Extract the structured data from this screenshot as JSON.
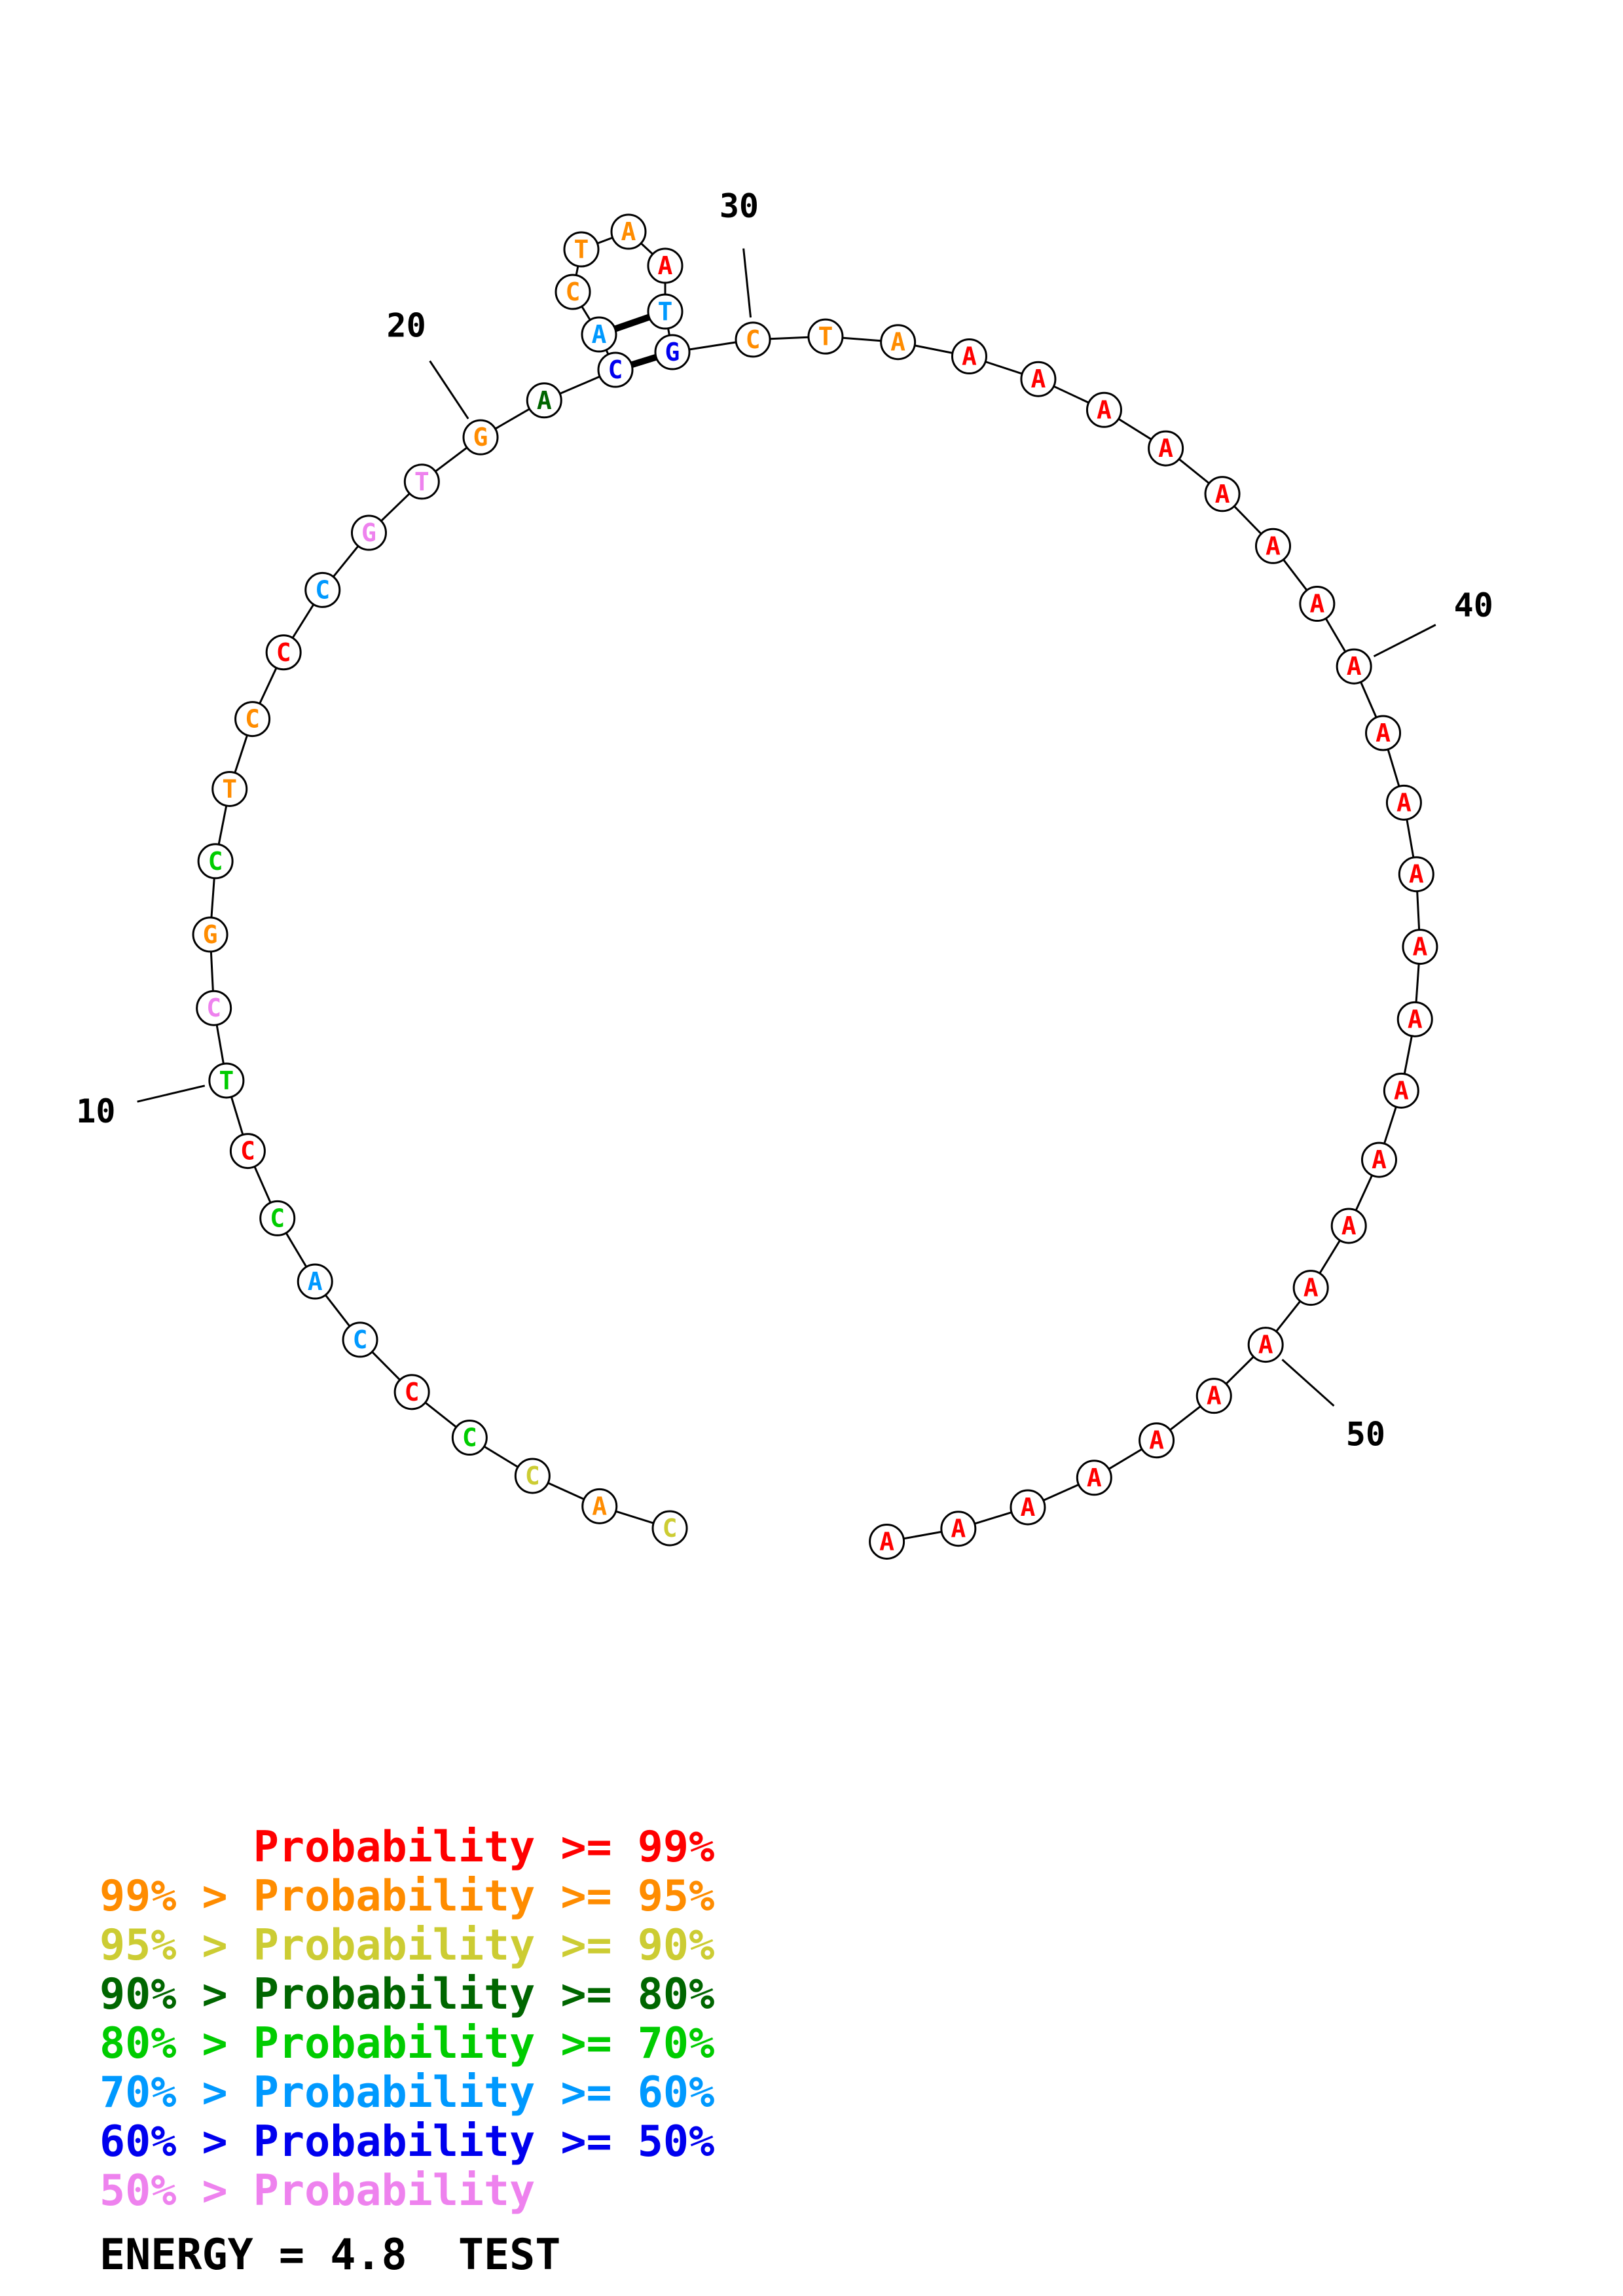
{
  "diagram": {
    "sequence": "CACCCCACCTCGCTCCCGTGACACTAATGCTAAAAAAAAAAAAAAAAAAAAAAAA",
    "length": 56,
    "bases": [
      {
        "i": 1,
        "b": "C",
        "cat": "p90"
      },
      {
        "i": 2,
        "b": "A",
        "cat": "p95"
      },
      {
        "i": 3,
        "b": "C",
        "cat": "p90"
      },
      {
        "i": 4,
        "b": "C",
        "cat": "p70"
      },
      {
        "i": 5,
        "b": "C",
        "cat": "p99"
      },
      {
        "i": 6,
        "b": "C",
        "cat": "p60"
      },
      {
        "i": 7,
        "b": "A",
        "cat": "p60"
      },
      {
        "i": 8,
        "b": "C",
        "cat": "p70"
      },
      {
        "i": 9,
        "b": "C",
        "cat": "p99"
      },
      {
        "i": 10,
        "b": "T",
        "cat": "p70"
      },
      {
        "i": 11,
        "b": "C",
        "cat": "plt50"
      },
      {
        "i": 12,
        "b": "G",
        "cat": "p95"
      },
      {
        "i": 13,
        "b": "C",
        "cat": "p70"
      },
      {
        "i": 14,
        "b": "T",
        "cat": "p95"
      },
      {
        "i": 15,
        "b": "C",
        "cat": "p95"
      },
      {
        "i": 16,
        "b": "C",
        "cat": "p99"
      },
      {
        "i": 17,
        "b": "C",
        "cat": "p60"
      },
      {
        "i": 18,
        "b": "G",
        "cat": "plt50"
      },
      {
        "i": 19,
        "b": "T",
        "cat": "plt50"
      },
      {
        "i": 20,
        "b": "G",
        "cat": "p95"
      },
      {
        "i": 21,
        "b": "A",
        "cat": "p80"
      },
      {
        "i": 22,
        "b": "C",
        "cat": "p50"
      },
      {
        "i": 23,
        "b": "A",
        "cat": "p60"
      },
      {
        "i": 24,
        "b": "C",
        "cat": "p95"
      },
      {
        "i": 25,
        "b": "T",
        "cat": "p95"
      },
      {
        "i": 26,
        "b": "A",
        "cat": "p95"
      },
      {
        "i": 27,
        "b": "A",
        "cat": "p99"
      },
      {
        "i": 28,
        "b": "T",
        "cat": "p60"
      },
      {
        "i": 29,
        "b": "G",
        "cat": "p50"
      },
      {
        "i": 30,
        "b": "C",
        "cat": "p95"
      },
      {
        "i": 31,
        "b": "T",
        "cat": "p95"
      },
      {
        "i": 32,
        "b": "A",
        "cat": "p95"
      },
      {
        "i": 33,
        "b": "A",
        "cat": "p99"
      },
      {
        "i": 34,
        "b": "A",
        "cat": "p99"
      },
      {
        "i": 35,
        "b": "A",
        "cat": "p99"
      },
      {
        "i": 36,
        "b": "A",
        "cat": "p99"
      },
      {
        "i": 37,
        "b": "A",
        "cat": "p99"
      },
      {
        "i": 38,
        "b": "A",
        "cat": "p99"
      },
      {
        "i": 39,
        "b": "A",
        "cat": "p99"
      },
      {
        "i": 40,
        "b": "A",
        "cat": "p99"
      },
      {
        "i": 41,
        "b": "A",
        "cat": "p99"
      },
      {
        "i": 42,
        "b": "A",
        "cat": "p99"
      },
      {
        "i": 43,
        "b": "A",
        "cat": "p99"
      },
      {
        "i": 44,
        "b": "A",
        "cat": "p99"
      },
      {
        "i": 45,
        "b": "A",
        "cat": "p99"
      },
      {
        "i": 46,
        "b": "A",
        "cat": "p99"
      },
      {
        "i": 47,
        "b": "A",
        "cat": "p99"
      },
      {
        "i": 48,
        "b": "A",
        "cat": "p99"
      },
      {
        "i": 49,
        "b": "A",
        "cat": "p99"
      },
      {
        "i": 50,
        "b": "A",
        "cat": "p99"
      },
      {
        "i": 51,
        "b": "A",
        "cat": "p99"
      },
      {
        "i": 52,
        "b": "A",
        "cat": "p99"
      },
      {
        "i": 53,
        "b": "A",
        "cat": "p99"
      },
      {
        "i": 54,
        "b": "A",
        "cat": "p99"
      },
      {
        "i": 55,
        "b": "A",
        "cat": "p99"
      },
      {
        "i": 56,
        "b": "A",
        "cat": "p99"
      }
    ],
    "pairs": [
      [
        22,
        29
      ],
      [
        23,
        28
      ]
    ],
    "labels": [
      {
        "text": "10",
        "base": 10
      },
      {
        "text": "20",
        "base": 20
      },
      {
        "text": "30",
        "base": 30
      },
      {
        "text": "40",
        "base": 40
      },
      {
        "text": "50",
        "base": 50
      }
    ]
  },
  "legend": {
    "rows": [
      {
        "text": "      Probability >= 99%",
        "cat": "p99"
      },
      {
        "text": "99% > Probability >= 95%",
        "cat": "p95"
      },
      {
        "text": "95% > Probability >= 90%",
        "cat": "p90"
      },
      {
        "text": "90% > Probability >= 80%",
        "cat": "p80"
      },
      {
        "text": "80% > Probability >= 70%",
        "cat": "p70"
      },
      {
        "text": "70% > Probability >= 60%",
        "cat": "p60"
      },
      {
        "text": "60% > Probability >= 50%",
        "cat": "p50"
      },
      {
        "text": "50% > Probability",
        "cat": "plt50"
      }
    ]
  },
  "footer": {
    "energy_text": "ENERGY = 4.8  TEST"
  },
  "palette": {
    "p99": "#FF0000",
    "p95": "#FF8C00",
    "p90": "#CCCC33",
    "p80": "#006600",
    "p70": "#00CC00",
    "p60": "#0099FF",
    "p50": "#0000EE",
    "plt50": "#EE82EE"
  }
}
